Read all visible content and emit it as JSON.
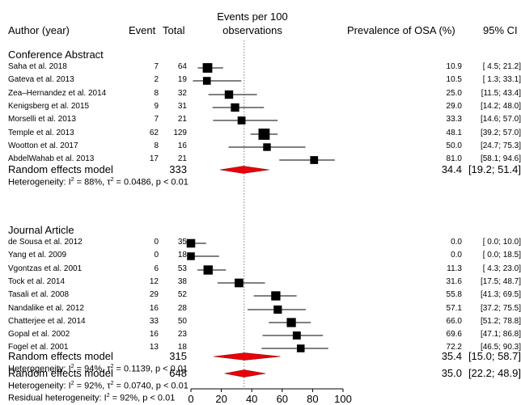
{
  "header": {
    "author": "Author (year)",
    "event": "Event",
    "total": "Total",
    "events_per_100_line1": "Events per 100",
    "events_per_100_line2": "observations",
    "prevalence": "Prevalence of OSA (%)",
    "ci": "95% CI"
  },
  "colors": {
    "diamond": "#e8000b",
    "box": "#000000",
    "ref_line": "#808080"
  },
  "chart_data": {
    "type": "forest",
    "xlim": [
      0,
      100
    ],
    "x_ticks": [
      0,
      20,
      40,
      60,
      80,
      100
    ],
    "reference_line": 35.0,
    "groups": [
      {
        "name": "Conference Abstract",
        "studies": [
          {
            "author": "Saha et al. 2018",
            "event": "7",
            "total": "64",
            "est": 10.9,
            "lo": 4.5,
            "hi": 21.2,
            "est_label": "10.9",
            "ci_label": "[ 4.5; 21.2]"
          },
          {
            "author": "Gateva et al. 2013",
            "event": "2",
            "total": "19",
            "est": 10.5,
            "lo": 1.3,
            "hi": 33.1,
            "est_label": "10.5",
            "ci_label": "[ 1.3; 33.1]"
          },
          {
            "author": "Zea–Hernandez et al. 2014",
            "event": "8",
            "total": "32",
            "est": 25.0,
            "lo": 11.5,
            "hi": 43.4,
            "est_label": "25.0",
            "ci_label": "[11.5; 43.4]"
          },
          {
            "author": "Kenigsberg et al. 2015",
            "event": "9",
            "total": "31",
            "est": 29.0,
            "lo": 14.2,
            "hi": 48.0,
            "est_label": "29.0",
            "ci_label": "[14.2; 48.0]"
          },
          {
            "author": "Morselli et al. 2013",
            "event": "7",
            "total": "21",
            "est": 33.3,
            "lo": 14.6,
            "hi": 57.0,
            "est_label": "33.3",
            "ci_label": "[14.6; 57.0]"
          },
          {
            "author": "Temple et al. 2013",
            "event": "62",
            "total": "129",
            "est": 48.1,
            "lo": 39.2,
            "hi": 57.0,
            "est_label": "48.1",
            "ci_label": "[39.2; 57.0]"
          },
          {
            "author": "Wootton et al. 2017",
            "event": "8",
            "total": "16",
            "est": 50.0,
            "lo": 24.7,
            "hi": 75.3,
            "est_label": "50.0",
            "ci_label": "[24.7; 75.3]"
          },
          {
            "author": "AbdelWahab et al. 2013",
            "event": "17",
            "total": "21",
            "est": 81.0,
            "lo": 58.1,
            "hi": 94.6,
            "est_label": "81.0",
            "ci_label": "[58.1; 94.6]"
          }
        ],
        "summary": {
          "label": "Random effects model",
          "total": "333",
          "est": 34.4,
          "lo": 19.2,
          "hi": 51.4,
          "est_label": "34.4",
          "ci_label": "[19.2; 51.4]"
        },
        "heterogeneity": {
          "prefix": "Heterogeneity: I",
          "i2": " = 88%, τ",
          "tau2": " = 0.0486, p < 0.01"
        }
      },
      {
        "name": "Journal Article",
        "studies": [
          {
            "author": "de Sousa et al. 2012",
            "event": "0",
            "total": "35",
            "est": 0.0,
            "lo": 0.0,
            "hi": 10.0,
            "est_label": "0.0",
            "ci_label": "[ 0.0; 10.0]"
          },
          {
            "author": "Yang et al. 2009",
            "event": "0",
            "total": "18",
            "est": 0.0,
            "lo": 0.0,
            "hi": 18.5,
            "est_label": "0.0",
            "ci_label": "[ 0.0; 18.5]"
          },
          {
            "author": "Vgontzas et al. 2001",
            "event": "6",
            "total": "53",
            "est": 11.3,
            "lo": 4.3,
            "hi": 23.0,
            "est_label": "11.3",
            "ci_label": "[ 4.3; 23.0]"
          },
          {
            "author": "Tock et al. 2014",
            "event": "12",
            "total": "38",
            "est": 31.6,
            "lo": 17.5,
            "hi": 48.7,
            "est_label": "31.6",
            "ci_label": "[17.5; 48.7]"
          },
          {
            "author": "Tasali et al. 2008",
            "event": "29",
            "total": "52",
            "est": 55.8,
            "lo": 41.3,
            "hi": 69.5,
            "est_label": "55.8",
            "ci_label": "[41.3; 69.5]"
          },
          {
            "author": "Nandalike et al. 2012",
            "event": "16",
            "total": "28",
            "est": 57.1,
            "lo": 37.2,
            "hi": 75.5,
            "est_label": "57.1",
            "ci_label": "[37.2; 75.5]"
          },
          {
            "author": "Chatterjee et al. 2014",
            "event": "33",
            "total": "50",
            "est": 66.0,
            "lo": 51.2,
            "hi": 78.8,
            "est_label": "66.0",
            "ci_label": "[51.2; 78.8]"
          },
          {
            "author": "Gopal et al. 2002",
            "event": "16",
            "total": "23",
            "est": 69.6,
            "lo": 47.1,
            "hi": 86.8,
            "est_label": "69.6",
            "ci_label": "[47.1; 86.8]"
          },
          {
            "author": "Fogel et al. 2001",
            "event": "13",
            "total": "18",
            "est": 72.2,
            "lo": 46.5,
            "hi": 90.3,
            "est_label": "72.2",
            "ci_label": "[46.5; 90.3]"
          }
        ],
        "summary": {
          "label": "Random effects model",
          "total": "315",
          "est": 35.4,
          "lo": 15.0,
          "hi": 58.7,
          "est_label": "35.4",
          "ci_label": "[15.0; 58.7]"
        },
        "heterogeneity": {
          "prefix": "Heterogeneity: I",
          "i2": " = 94%, τ",
          "tau2": " = 0.1139, p < 0.01"
        }
      }
    ],
    "overall": {
      "label": "Random effects model",
      "total": "648",
      "est": 35.0,
      "lo": 22.2,
      "hi": 48.9,
      "est_label": "35.0",
      "ci_label": "[22.2; 48.9]",
      "heterogeneity": {
        "prefix": "Heterogeneity: I",
        "i2": " = 92%, τ",
        "tau2": " = 0.0740, p < 0.01"
      },
      "residual": {
        "prefix": "Residual heterogeneity: I",
        "i2": " = 92%, p < 0.01"
      }
    }
  }
}
